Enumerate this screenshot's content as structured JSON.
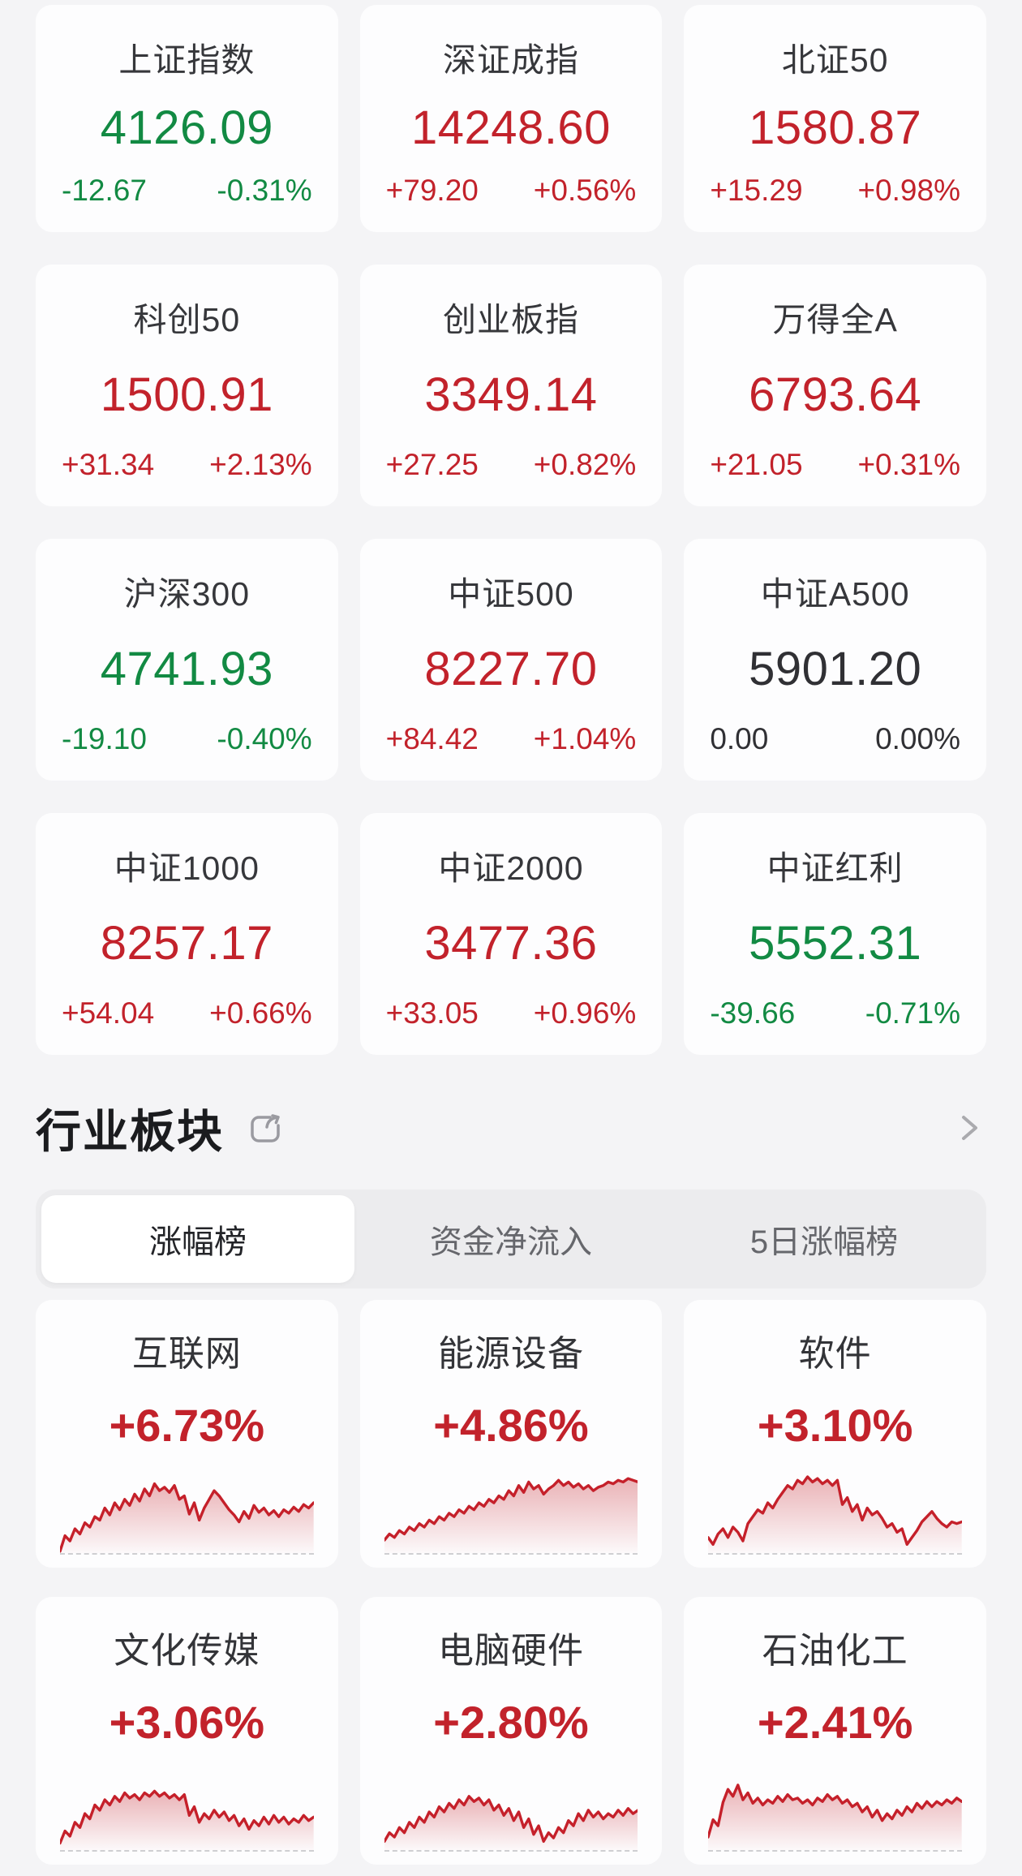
{
  "colors": {
    "up_red": "#c2222b",
    "down_green": "#128a43",
    "flat": "#303034",
    "page_bg": "#f4f4f6"
  },
  "indices": [
    {
      "name": "上证指数",
      "value": "4126.09",
      "change": "-12.67",
      "change_pct": "-0.31%",
      "direction": "down"
    },
    {
      "name": "深证成指",
      "value": "14248.60",
      "change": "+79.20",
      "change_pct": "+0.56%",
      "direction": "up"
    },
    {
      "name": "北证50",
      "value": "1580.87",
      "change": "+15.29",
      "change_pct": "+0.98%",
      "direction": "up"
    },
    {
      "name": "科创50",
      "value": "1500.91",
      "change": "+31.34",
      "change_pct": "+2.13%",
      "direction": "up"
    },
    {
      "name": "创业板指",
      "value": "3349.14",
      "change": "+27.25",
      "change_pct": "+0.82%",
      "direction": "up"
    },
    {
      "name": "万得全A",
      "value": "6793.64",
      "change": "+21.05",
      "change_pct": "+0.31%",
      "direction": "up"
    },
    {
      "name": "沪深300",
      "value": "4741.93",
      "change": "-19.10",
      "change_pct": "-0.40%",
      "direction": "down"
    },
    {
      "name": "中证500",
      "value": "8227.70",
      "change": "+84.42",
      "change_pct": "+1.04%",
      "direction": "up"
    },
    {
      "name": "中证A500",
      "value": "5901.20",
      "change": "0.00",
      "change_pct": "0.00%",
      "direction": "flat"
    },
    {
      "name": "中证1000",
      "value": "8257.17",
      "change": "+54.04",
      "change_pct": "+0.66%",
      "direction": "up"
    },
    {
      "name": "中证2000",
      "value": "3477.36",
      "change": "+33.05",
      "change_pct": "+0.96%",
      "direction": "up"
    },
    {
      "name": "中证红利",
      "value": "5552.31",
      "change": "-39.66",
      "change_pct": "-0.71%",
      "direction": "down"
    }
  ],
  "sector_section": {
    "title": "行业板块",
    "icons": {
      "share": "share-icon",
      "chevron": "chevron-right-icon"
    },
    "tabs": [
      {
        "label": "涨幅榜",
        "active": true
      },
      {
        "label": "资金净流入",
        "active": false
      },
      {
        "label": "5日涨幅榜",
        "active": false
      }
    ],
    "sectors": [
      {
        "name": "互联网",
        "change_pct": "+6.73%",
        "spark": [
          2,
          20,
          14,
          28,
          22,
          35,
          30,
          42,
          38,
          52,
          44,
          58,
          50,
          62,
          55,
          68,
          60,
          74,
          66,
          80,
          72,
          76,
          70,
          78,
          62,
          66,
          45,
          58,
          38,
          52,
          62,
          72,
          66,
          58,
          50,
          44,
          36,
          48,
          40,
          55,
          47,
          52,
          44,
          49,
          42,
          50,
          46,
          53,
          48,
          56,
          52,
          58
        ]
      },
      {
        "name": "能源设备",
        "change_pct": "+4.86%",
        "spark": [
          15,
          22,
          18,
          26,
          22,
          30,
          26,
          34,
          30,
          38,
          34,
          42,
          38,
          46,
          42,
          50,
          46,
          54,
          50,
          58,
          54,
          62,
          58,
          66,
          62,
          72,
          66,
          78,
          70,
          82,
          74,
          78,
          68,
          74,
          78,
          84,
          78,
          82,
          76,
          80,
          74,
          78,
          72,
          76,
          78,
          82,
          80,
          84,
          82,
          86,
          84,
          82
        ]
      },
      {
        "name": "软件",
        "change_pct": "+3.10%",
        "spark": [
          18,
          10,
          22,
          28,
          18,
          30,
          24,
          14,
          34,
          42,
          50,
          46,
          58,
          52,
          62,
          70,
          78,
          74,
          84,
          80,
          88,
          82,
          86,
          80,
          84,
          78,
          84,
          56,
          64,
          48,
          56,
          38,
          52,
          44,
          48,
          40,
          30,
          34,
          24,
          28,
          10,
          18,
          26,
          36,
          42,
          48,
          40,
          34,
          30,
          36,
          34,
          36
        ]
      },
      {
        "name": "文化传媒",
        "change_pct": "+3.06%",
        "spark": [
          8,
          22,
          16,
          32,
          26,
          42,
          36,
          52,
          46,
          58,
          52,
          62,
          56,
          66,
          60,
          64,
          58,
          66,
          62,
          68,
          62,
          66,
          60,
          64,
          58,
          64,
          40,
          50,
          32,
          42,
          36,
          46,
          38,
          44,
          34,
          40,
          28,
          36,
          24,
          34,
          28,
          38,
          30,
          40,
          32,
          38,
          30,
          36,
          32,
          40,
          34,
          38
        ]
      },
      {
        "name": "电脑硬件",
        "change_pct": "+2.80%",
        "spark": [
          10,
          20,
          15,
          26,
          20,
          32,
          26,
          38,
          32,
          44,
          38,
          50,
          44,
          54,
          48,
          58,
          52,
          62,
          56,
          60,
          52,
          58,
          46,
          52,
          40,
          48,
          34,
          44,
          26,
          36,
          18,
          28,
          10,
          20,
          14,
          26,
          20,
          34,
          28,
          42,
          34,
          46,
          38,
          44,
          36,
          42,
          38,
          46,
          40,
          48,
          42,
          46
        ]
      },
      {
        "name": "石油化工",
        "change_pct": "+2.41%",
        "spark": [
          15,
          35,
          28,
          55,
          70,
          62,
          75,
          58,
          66,
          54,
          60,
          52,
          58,
          54,
          62,
          56,
          64,
          58,
          60,
          54,
          58,
          52,
          60,
          56,
          64,
          58,
          62,
          54,
          58,
          50,
          54,
          44,
          50,
          38,
          46,
          34,
          42,
          36,
          46,
          40,
          50,
          44,
          54,
          48,
          56,
          50,
          56,
          52,
          58,
          54,
          60,
          56
        ]
      }
    ]
  }
}
